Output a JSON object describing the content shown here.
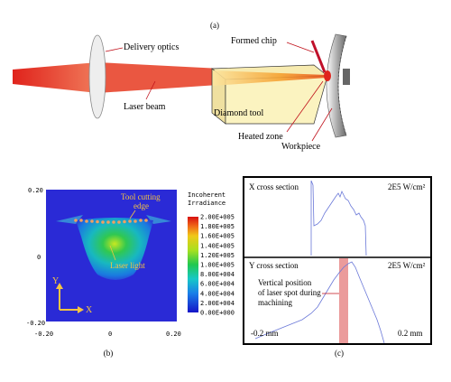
{
  "panel_a": {
    "label": "(a)",
    "delivery_optics": "Delivery  optics",
    "laser_beam": "Laser beam",
    "formed_chip": "Formed chip",
    "diamond_tool": "Diamond tool",
    "heated_zone": "Heated zone",
    "workpiece": "Workpiece"
  },
  "panel_b": {
    "label": "(b)",
    "y_ticks": [
      "0.20",
      "0",
      "-0.20"
    ],
    "x_ticks": [
      "-0.20",
      "0",
      "0.20"
    ],
    "tool_edge_label_1": "Tool cutting",
    "tool_edge_label_2": "edge",
    "laser_light": "Laser light",
    "axis_y": "Y",
    "axis_x": "X",
    "colorbar_title_1": "Incoherent",
    "colorbar_title_2": "Irradiance",
    "colorbar_ticks": [
      "2.00E+005",
      "1.80E+005",
      "1.60E+005",
      "1.40E+005",
      "1.20E+005",
      "1.00E+005",
      "8.00E+004",
      "6.00E+004",
      "4.00E+004",
      "2.00E+004",
      "0.00E+000"
    ]
  },
  "panel_c": {
    "label": "(c)",
    "x_title": "X cross section",
    "x_scale": "2E5 W/cm²",
    "y_title": "Y cross section",
    "y_scale": "2E5 W/cm²",
    "annot_1": "Vertical position",
    "annot_2": "of laser spot during",
    "annot_3": "machining",
    "left_mm": "-0.2 mm",
    "right_mm": "0.2 mm"
  },
  "colors": {
    "laser": "#e0231c",
    "tool_fill": "#fbf3c0",
    "field_bg": "#2a2ad6",
    "marker": "#f0a060",
    "annotation_text": "#f5c542",
    "spot_band": "#e88a8a",
    "trace": "#6a78d8"
  }
}
